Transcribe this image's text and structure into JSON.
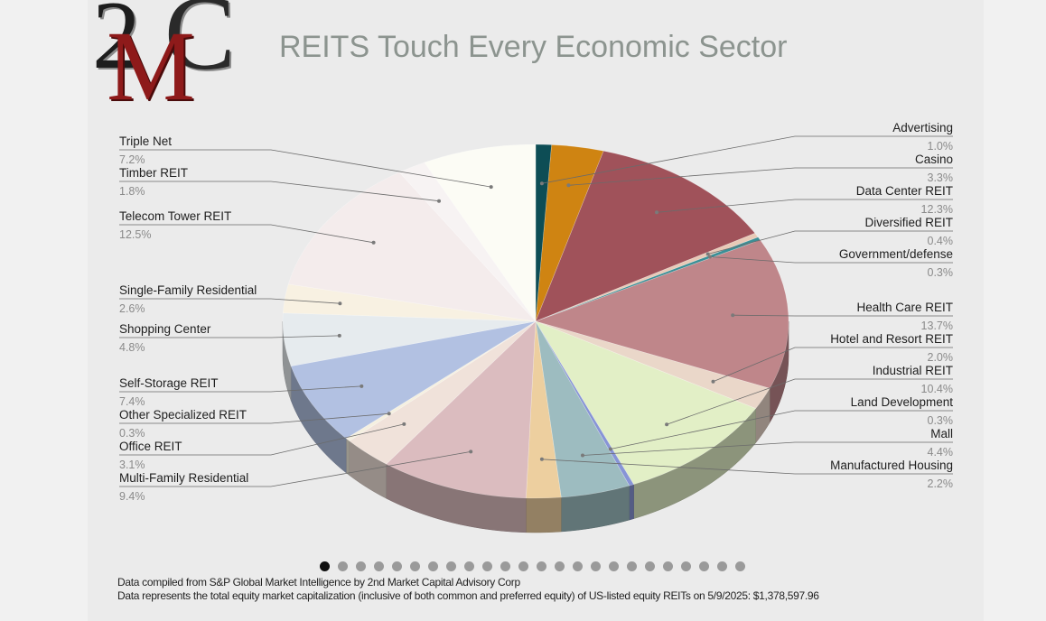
{
  "header": {
    "title": "REITS Touch Every Economic Sector",
    "logo_text": "2MC"
  },
  "footer": {
    "line1": "Data compiled from S&P Global Market Intelligence by 2nd Market Capital Advisory Corp",
    "line2": "Data represents the total equity market capitalization (inclusive of both common and preferred equity) of US-listed equity REITs on 5/9/2025: $1,378,597.96"
  },
  "carousel": {
    "count": 24,
    "active_index": 0
  },
  "chart_data": {
    "type": "pie",
    "title": "REITS Touch Every Economic Sector",
    "value_unit": "%",
    "slices": [
      {
        "label": "Advertising",
        "value": 1.0,
        "display": "1.0%",
        "color": "#0d4d55"
      },
      {
        "label": "Casino",
        "value": 3.3,
        "display": "3.3%",
        "color": "#cf8412"
      },
      {
        "label": "Data Center REIT",
        "value": 12.3,
        "display": "12.3%",
        "color": "#a0525a"
      },
      {
        "label": "Diversified REIT",
        "value": 0.4,
        "display": "0.4%",
        "color": "#e8c9b6"
      },
      {
        "label": "Government/defense",
        "value": 0.3,
        "display": "0.3%",
        "color": "#3b8f96"
      },
      {
        "label": "Health Care REIT",
        "value": 13.7,
        "display": "13.7%",
        "color": "#bf868a"
      },
      {
        "label": "Hotel and Resort REIT",
        "value": 2.0,
        "display": "2.0%",
        "color": "#ead7c9"
      },
      {
        "label": "Industrial REIT",
        "value": 10.4,
        "display": "10.4%",
        "color": "#e2efc6"
      },
      {
        "label": "Land Development",
        "value": 0.3,
        "display": "0.3%",
        "color": "#8794d6"
      },
      {
        "label": "Mall",
        "value": 4.4,
        "display": "4.4%",
        "color": "#9dbcc0"
      },
      {
        "label": "Manufactured Housing",
        "value": 2.2,
        "display": "2.2%",
        "color": "#edcf9f"
      },
      {
        "label": "Multi-Family Residential",
        "value": 9.4,
        "display": "9.4%",
        "color": "#dbbcbf"
      },
      {
        "label": "Office REIT",
        "value": 3.1,
        "display": "3.1%",
        "color": "#f0e2da"
      },
      {
        "label": "Other Specialized REIT",
        "value": 0.3,
        "display": "0.3%",
        "color": "#f5f0e0"
      },
      {
        "label": "Self-Storage REIT",
        "value": 7.4,
        "display": "7.4%",
        "color": "#b2c1e2"
      },
      {
        "label": "Shopping Center",
        "value": 4.8,
        "display": "4.8%",
        "color": "#e6ebee"
      },
      {
        "label": "Single-Family Residential",
        "value": 2.6,
        "display": "2.6%",
        "color": "#f8f1e2"
      },
      {
        "label": "Telecom Tower REIT",
        "value": 12.5,
        "display": "12.5%",
        "color": "#f4ecec"
      },
      {
        "label": "Timber REIT",
        "value": 1.8,
        "display": "1.8%",
        "color": "#f7f3f3"
      },
      {
        "label": "Triple Net",
        "value": 7.2,
        "display": "7.2%",
        "color": "#fcfcf5"
      }
    ],
    "legend": "leader-line labels on both sides"
  }
}
